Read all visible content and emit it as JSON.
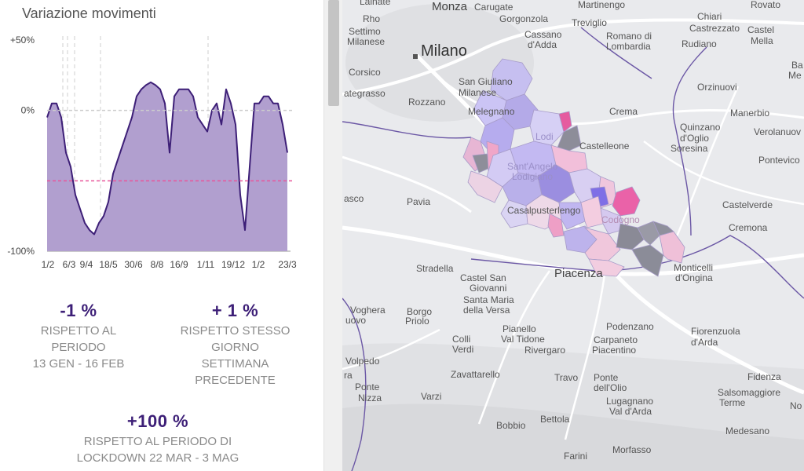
{
  "panel": {
    "title": "Variazione movimenti",
    "stats": [
      {
        "value": "-1 %",
        "lines": [
          "RISPETTO AL",
          "PERIODO",
          "13 GEN - 16 FEB"
        ]
      },
      {
        "value": "+ 1 %",
        "lines": [
          "RISPETTO STESSO",
          "GIORNO",
          "SETTIMANA",
          "PRECEDENTE"
        ]
      },
      {
        "value": "+100 %",
        "lines": [
          "RISPETTO AL PERIODO DI",
          "LOCKDOWN 22 MAR - 3 MAG"
        ]
      }
    ]
  },
  "chart_data": {
    "type": "area",
    "title": "Variazione movimenti",
    "ylim": [
      -100,
      50
    ],
    "yticks": [
      "+50%",
      "0%",
      "-100%"
    ],
    "ytick_values": [
      50,
      0,
      -100
    ],
    "xticks": [
      "1/2",
      "6/3",
      "9/4",
      "18/5",
      "30/6",
      "8/8",
      "16/9",
      "1/11",
      "19/12",
      "1/2",
      "23/3"
    ],
    "reference_lines": [
      {
        "name": "zero",
        "value": 0,
        "color": "#cccccc"
      },
      {
        "name": "lockdown-average",
        "value": -50,
        "color": "#e8559a"
      }
    ],
    "series": [
      {
        "name": "variazione",
        "color": "#3d1f77",
        "fill": "#b19fcf",
        "values": [
          -5,
          5,
          5,
          -5,
          -30,
          -40,
          -60,
          -70,
          -80,
          -85,
          -88,
          -80,
          -75,
          -65,
          -45,
          -35,
          -25,
          -15,
          -5,
          10,
          15,
          18,
          20,
          18,
          15,
          5,
          -30,
          10,
          15,
          15,
          15,
          10,
          -5,
          -10,
          -15,
          0,
          5,
          -10,
          15,
          5,
          -10,
          -60,
          -85,
          -40,
          5,
          5,
          10,
          10,
          5,
          5,
          -10,
          -30
        ]
      }
    ]
  },
  "map": {
    "labels": {
      "milano": "Milano",
      "monza": "Monza",
      "carugate": "Carugate",
      "martinengo": "Martinengo",
      "rovato": "Rovato",
      "lainate": "Lainate",
      "rho": "Rho",
      "gorgonzola": "Gorgonzola",
      "treviglio": "Treviglio",
      "chiari": "Chiari",
      "castrezzato": "Castrezzato",
      "castel_mella_1": "Castel",
      "castel_mella_2": "Mella",
      "settimo_1": "Settimo",
      "settimo_2": "Milanese",
      "cassano_1": "Cassano",
      "cassano_2": "d'Adda",
      "romano_1": "Romano di",
      "romano_2": "Lombardia",
      "rudiano": "Rudiano",
      "corsico": "Corsico",
      "san_giuliano_1": "San Giuliano",
      "san_giuliano_2": "Milanese",
      "orzinuovi": "Orzinuovi",
      "trezzano": "ategrasso",
      "rozzano": "Rozzano",
      "melegnano": "Melegnano",
      "crema": "Crema",
      "manerbio": "Manerbio",
      "quinzano_1": "Quinzano",
      "quinzano_2": "d'Oglio",
      "verolanuova": "Verolanuov",
      "lodi": "Lodi",
      "castelleone": "Castelleone",
      "soresina": "Soresina",
      "pontevico": "Pontevico",
      "sant_angelo_1": "Sant'Angelo",
      "sant_angelo_2": "Lodigiano",
      "abbiategrasso_cut": "asco",
      "pavia": "Pavia",
      "casalpusterlengo": "Casalpusterlengo",
      "castelverde": "Castelverde",
      "codogno": "Codogno",
      "cremona": "Cremona",
      "stradella": "Stradella",
      "castel_san_giovanni_1": "Castel San",
      "castel_san_giovanni_2": "Giovanni",
      "piacenza": "Piacenza",
      "monticelli_1": "Monticelli",
      "monticelli_2": "d'Ongina",
      "santa_maria_1": "Santa Maria",
      "santa_maria_2": "della Versa",
      "voghera_1": "Voghera",
      "voghera_2": "uovo",
      "borgo_1": "Borgo",
      "borgo_2": "Priolo",
      "podenzano": "Podenzano",
      "pianello_1": "Pianello",
      "pianello_2": "Val Tidone",
      "carpaneto_1": "Carpaneto",
      "carpaneto_2": "Piacentino",
      "fiorenzuola_1": "Fiorenzuola",
      "fiorenzuola_2": "d'Arda",
      "colli_1": "Colli",
      "colli_2": "Verdi",
      "rivergaro": "Rivergaro",
      "volpedo": "Volpedo",
      "ra": "ra",
      "zavattarello": "Zavattarello",
      "travo": "Travo",
      "ponte_olio_1": "Ponte",
      "ponte_olio_2": "dell'Olio",
      "fidenza": "Fidenza",
      "ponte_nizza_1": "Ponte",
      "ponte_nizza_2": "Nizza",
      "varzi": "Varzi",
      "lugagnano_1": "Lugagnano",
      "lugagnano_2": "Val d'Arda",
      "salsomaggiore_1": "Salsomaggiore",
      "salsomaggiore_2": "Terme",
      "no_cut": "No",
      "bettola": "Bettola",
      "bobbio": "Bobbio",
      "medesano": "Medesano",
      "morfasso": "Morfasso",
      "farini": "Farini",
      "ba_cut": "Ba",
      "me_cut": "Me"
    }
  }
}
